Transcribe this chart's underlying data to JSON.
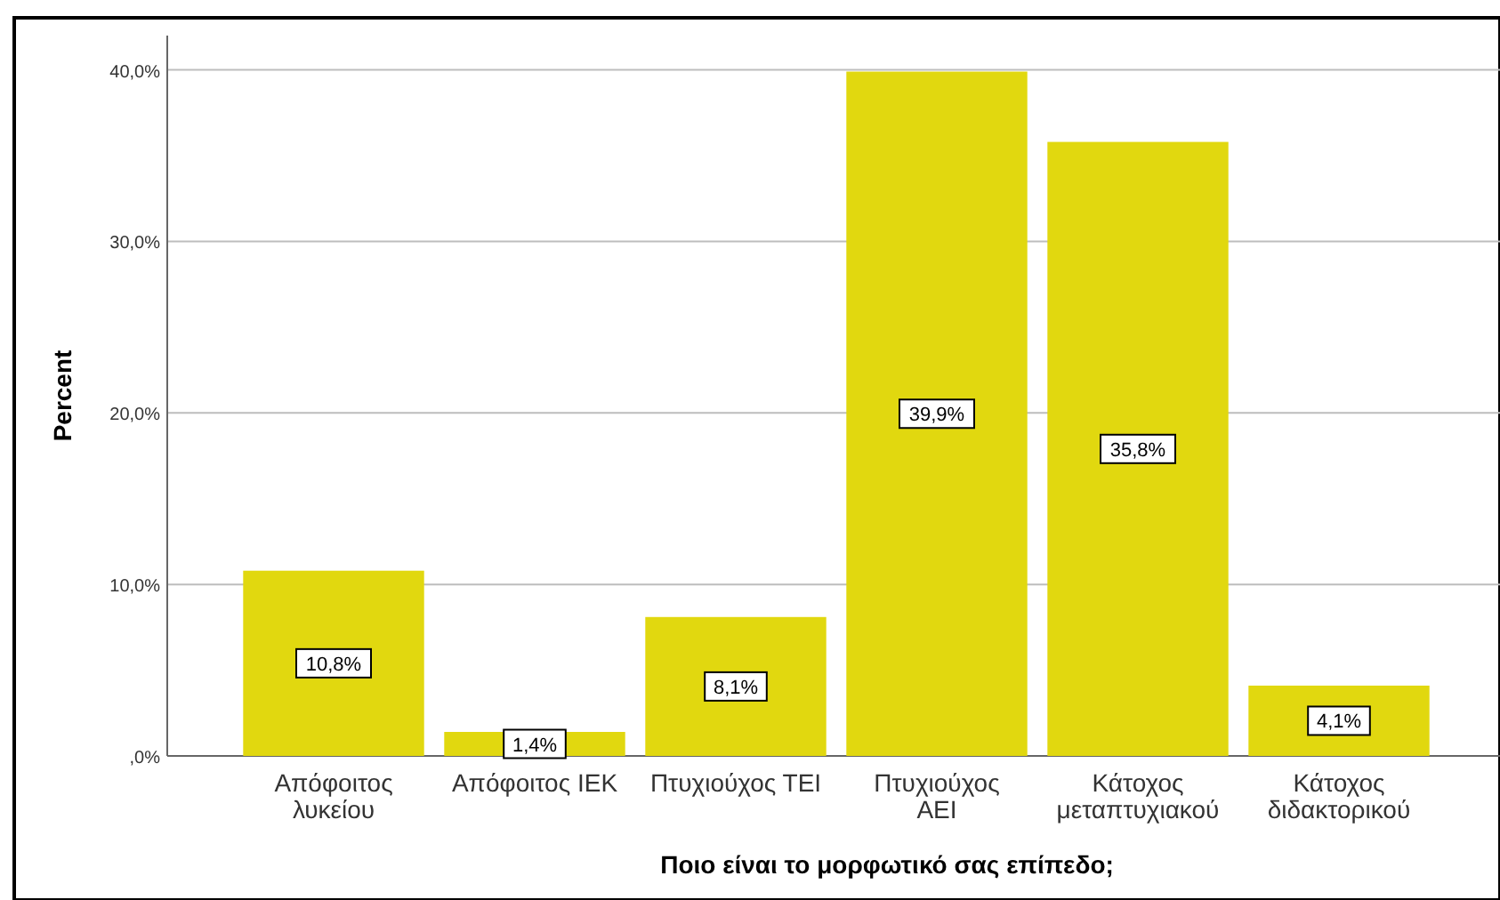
{
  "chart_data": {
    "type": "bar",
    "xlabel": "Ποιο είναι το μορφωτικό σας επίπεδο;",
    "ylabel": "Percent",
    "categories": [
      "Απόφοιτος\nλυκείου",
      "Απόφοιτος ΙΕΚ",
      "Πτυχιούχος ΤΕΙ",
      "Πτυχιούχος\nΑΕΙ",
      "Κάτοχος\nμεταπτυχιακού",
      "Κάτοχος\nδιδακτορικού"
    ],
    "values": [
      10.8,
      1.4,
      8.1,
      39.9,
      35.8,
      4.1
    ],
    "value_labels": [
      "10,8%",
      "1,4%",
      "8,1%",
      "39,9%",
      "35,8%",
      "4,1%"
    ],
    "color": "#e1d80f",
    "ylim": [
      0,
      42
    ],
    "yticks": [
      {
        "value": 0,
        "label": ",0%"
      },
      {
        "value": 10,
        "label": "10,0%"
      },
      {
        "value": 20,
        "label": "20,0%"
      },
      {
        "value": 30,
        "label": "30,0%"
      },
      {
        "value": 40,
        "label": "40,0%"
      }
    ],
    "grid": "y"
  }
}
